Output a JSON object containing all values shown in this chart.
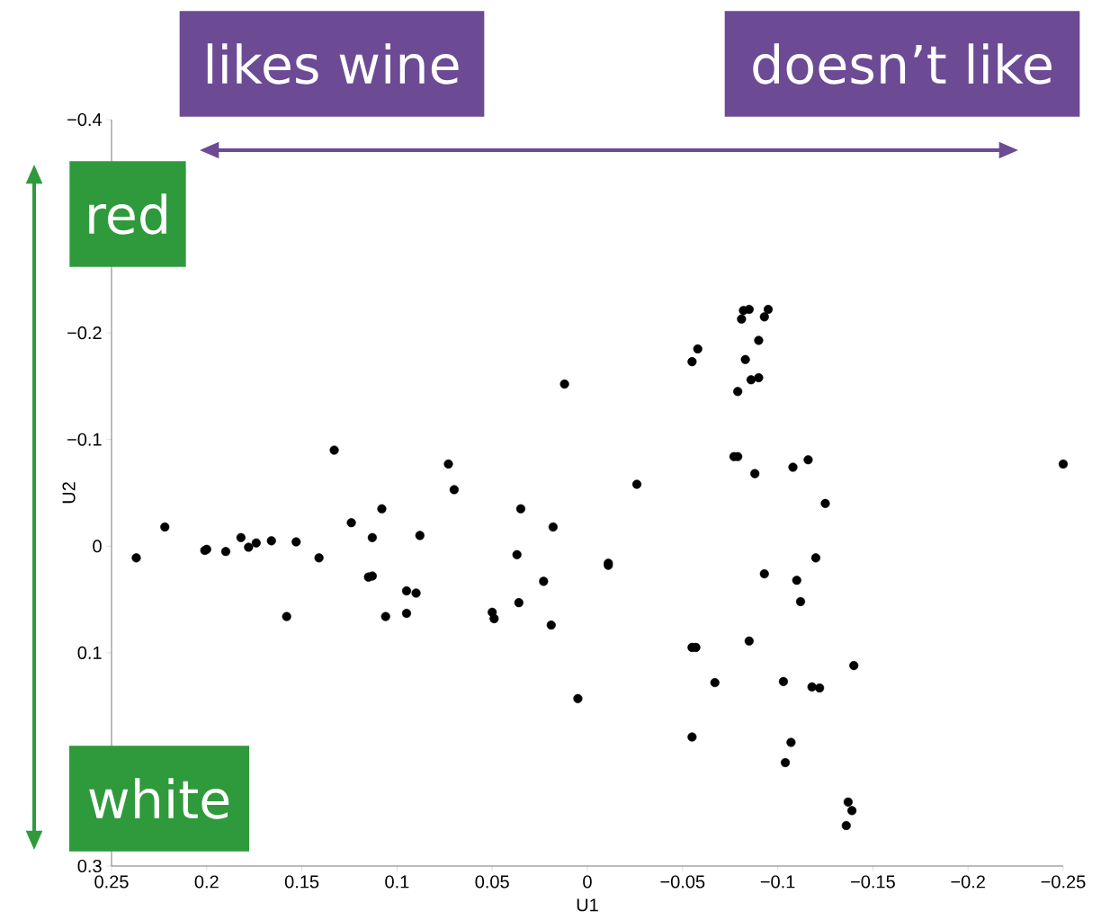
{
  "chart_data": {
    "type": "scatter",
    "xlabel": "U1",
    "ylabel": "U2",
    "annotations": [
      "likes wine",
      "doesn’t like",
      "red",
      "white"
    ],
    "xlim": [
      0.25,
      -0.25
    ],
    "ylim": [
      0.3,
      -0.4
    ],
    "xticks": [
      0.25,
      0.2,
      0.15,
      0.1,
      0.05,
      0,
      {
        "value": -0.05,
        "label": "−0.05"
      },
      {
        "value": -0.1,
        "label": "−0.1"
      },
      {
        "value": -0.15,
        "label": "−0.15"
      },
      {
        "value": -0.2,
        "label": "−0.2"
      },
      {
        "value": -0.25,
        "label": "−0.25"
      }
    ],
    "yticks": [
      {
        "value": -0.4,
        "label": "−0.4"
      },
      {
        "value": -0.3,
        "label": null
      },
      {
        "value": -0.2,
        "label": "−0.2"
      },
      {
        "value": -0.1,
        "label": "−0.1"
      },
      0,
      0.1,
      {
        "value": 0.2,
        "label": null
      },
      0.3
    ],
    "marker": "circle",
    "series": [
      {
        "color": "#000000",
        "x": [
          0.237,
          0.222,
          0.201,
          0.2,
          0.19,
          0.182,
          0.178,
          0.174,
          0.166,
          0.158,
          0.153,
          0.141,
          0.133,
          0.124,
          0.115,
          0.113,
          0.113,
          0.108,
          0.106,
          0.095,
          0.095,
          0.09,
          0.088,
          0.073,
          0.07,
          0.05,
          0.049,
          0.037,
          0.036,
          0.035,
          0.023,
          0.019,
          0.018,
          0.012,
          0.005,
          -0.011,
          -0.011,
          -0.026,
          -0.055,
          -0.058,
          -0.055,
          -0.057,
          -0.055,
          -0.067,
          -0.077,
          -0.079,
          -0.079,
          -0.081,
          -0.082,
          -0.085,
          -0.083,
          -0.086,
          -0.088,
          -0.085,
          -0.09,
          -0.09,
          -0.093,
          -0.095,
          -0.093,
          -0.103,
          -0.104,
          -0.107,
          -0.108,
          -0.11,
          -0.112,
          -0.116,
          -0.118,
          -0.122,
          -0.12,
          -0.125,
          -0.14,
          -0.136,
          -0.137,
          -0.139,
          -0.25
        ],
        "values": [
          0.011,
          -0.018,
          0.004,
          0.003,
          0.005,
          -0.008,
          0.001,
          -0.003,
          -0.005,
          0.066,
          -0.004,
          0.011,
          -0.09,
          -0.022,
          0.029,
          0.028,
          -0.008,
          -0.035,
          0.066,
          0.042,
          0.063,
          0.044,
          -0.01,
          -0.077,
          -0.053,
          0.062,
          0.068,
          0.008,
          0.053,
          -0.035,
          0.033,
          0.074,
          -0.018,
          -0.152,
          0.143,
          0.016,
          0.018,
          -0.058,
          -0.173,
          -0.185,
          0.095,
          0.095,
          0.179,
          0.128,
          -0.084,
          -0.084,
          -0.145,
          -0.213,
          -0.221,
          -0.222,
          -0.175,
          -0.156,
          -0.068,
          0.089,
          -0.193,
          -0.158,
          -0.215,
          -0.222,
          0.026,
          0.127,
          0.203,
          0.184,
          -0.074,
          0.032,
          0.052,
          -0.081,
          0.132,
          0.133,
          0.011,
          -0.04,
          0.112,
          0.262,
          0.24,
          0.248,
          -0.077
        ]
      }
    ]
  }
}
